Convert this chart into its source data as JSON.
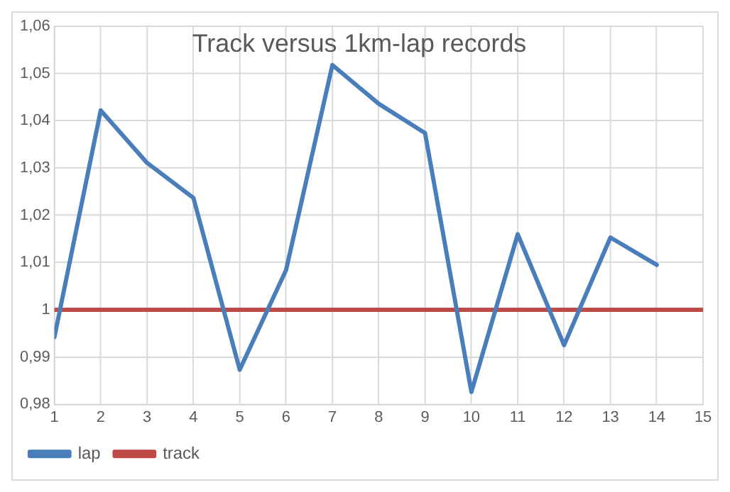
{
  "chart_data": {
    "type": "line",
    "title": "Track versus 1km-lap records",
    "xlim": [
      1,
      15
    ],
    "xticks": [
      1,
      2,
      3,
      4,
      5,
      6,
      7,
      8,
      9,
      10,
      11,
      12,
      13,
      14,
      15
    ],
    "ylim": [
      0.98,
      1.06
    ],
    "yticks": [
      {
        "value": 0.98,
        "label": "0,98"
      },
      {
        "value": 0.99,
        "label": "0,99"
      },
      {
        "value": 1,
        "label": "1"
      },
      {
        "value": 1.01,
        "label": "1,01"
      },
      {
        "value": 1.02,
        "label": "1,02"
      },
      {
        "value": 1.03,
        "label": "1,03"
      },
      {
        "value": 1.04,
        "label": "1,04"
      },
      {
        "value": 1.05,
        "label": "1,05"
      },
      {
        "value": 1.06,
        "label": "1,06"
      }
    ],
    "grid": true,
    "legend": "bottom left",
    "marker": "none",
    "line_style": "solid",
    "series": [
      {
        "name": "lap",
        "color": "#4a7ebb",
        "x": [
          1,
          2,
          3,
          4,
          5,
          6,
          7,
          8,
          9,
          10,
          11,
          12,
          13,
          14
        ],
        "values": [
          0.9942,
          1.0422,
          1.0311,
          1.0237,
          0.9873,
          1.0084,
          1.0518,
          1.0436,
          1.0374,
          0.9826,
          1.016,
          0.9925,
          1.0153,
          1.0095
        ]
      },
      {
        "name": "track",
        "color": "#be4b48",
        "x": [
          1,
          15
        ],
        "values": [
          1,
          1
        ]
      }
    ]
  }
}
